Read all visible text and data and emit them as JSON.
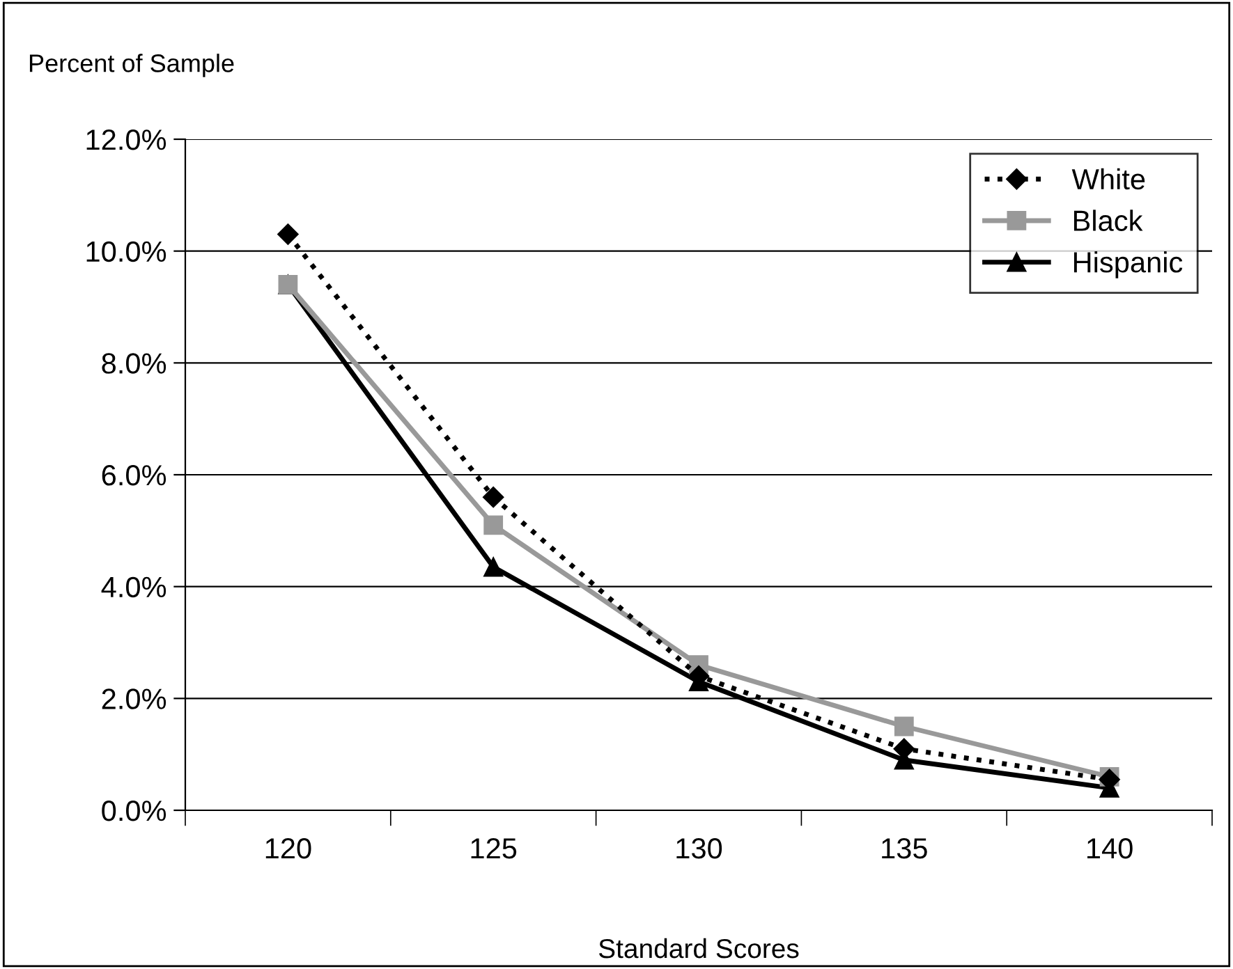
{
  "chart_data": {
    "type": "line",
    "ylabel": "Percent of Sample",
    "xlabel": "Standard Scores",
    "categories": [
      "120",
      "125",
      "130",
      "135",
      "140"
    ],
    "series": [
      {
        "name": "White",
        "color": "#000000",
        "marker": "diamond",
        "line_style": "dotted",
        "values": [
          10.3,
          5.6,
          2.4,
          1.1,
          0.55
        ]
      },
      {
        "name": "Black",
        "color": "#999999",
        "marker": "square",
        "line_style": "solid",
        "values": [
          9.4,
          5.1,
          2.6,
          1.5,
          0.6
        ]
      },
      {
        "name": "Hispanic",
        "color": "#000000",
        "marker": "triangle",
        "line_style": "solid",
        "values": [
          9.4,
          4.35,
          2.3,
          0.9,
          0.4
        ]
      }
    ],
    "ylim": [
      0,
      12
    ],
    "yticks": [
      {
        "value": 0,
        "label": "0.0%"
      },
      {
        "value": 2,
        "label": "2.0%"
      },
      {
        "value": 4,
        "label": "4.0%"
      },
      {
        "value": 6,
        "label": "6.0%"
      },
      {
        "value": 8,
        "label": "8.0%"
      },
      {
        "value": 10,
        "label": "10.0%"
      },
      {
        "value": 12,
        "label": "12.0%"
      }
    ],
    "grid": "y",
    "legend": "top right"
  }
}
